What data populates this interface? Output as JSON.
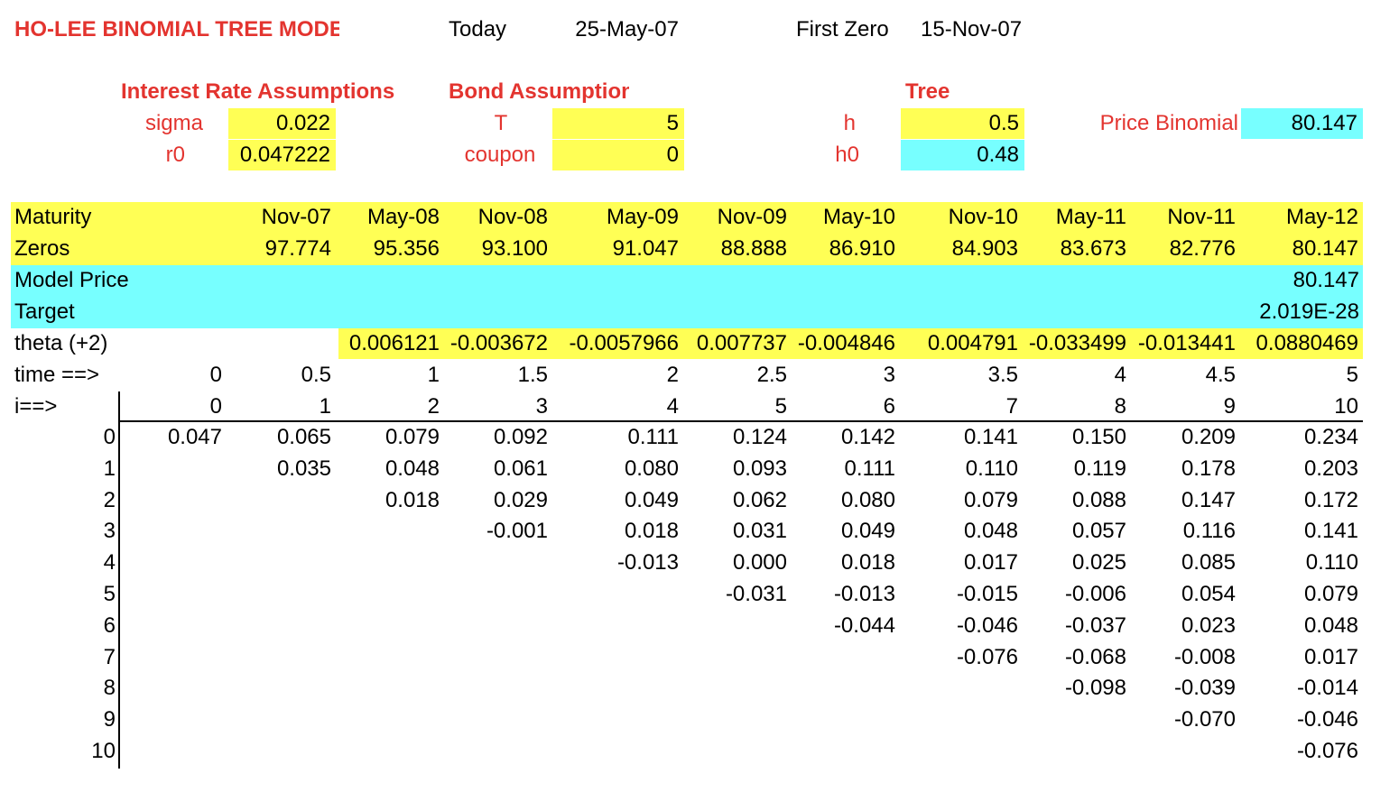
{
  "header": {
    "title": "HO-LEE BINOMIAL TREE MODEL",
    "today_label": "Today",
    "today_value": "25-May-07",
    "first_zero_label": "First Zero",
    "first_zero_value": "15-Nov-07"
  },
  "interest": {
    "heading": "Interest Rate Assumptions",
    "sigma_label": "sigma",
    "sigma_value": "0.022",
    "r0_label": "r0",
    "r0_value": "0.047222"
  },
  "bond": {
    "heading": "Bond Assumption",
    "T_label": "T",
    "T_value": "5",
    "coupon_label": "coupon",
    "coupon_value": "0"
  },
  "tree": {
    "heading": "Tree",
    "h_label": "h",
    "h_value": "0.5",
    "h0_label": "h0",
    "h0_value": "0.48",
    "price_label": "Price Binomial",
    "price_value": "80.147"
  },
  "rows": {
    "maturity_label": "Maturity",
    "maturities": [
      "Nov-07",
      "May-08",
      "Nov-08",
      "May-09",
      "Nov-09",
      "May-10",
      "Nov-10",
      "May-11",
      "Nov-11",
      "May-12"
    ],
    "zeros_label": "Zeros",
    "zeros": [
      "97.774",
      "95.356",
      "93.100",
      "91.047",
      "88.888",
      "86.910",
      "84.903",
      "83.673",
      "82.776",
      "80.147"
    ],
    "model_price_label": "Model Price",
    "model_price_value": "80.147",
    "target_label": "Target",
    "target_value": "2.019E-28",
    "theta_label": "theta (+2)",
    "theta": [
      "0.006121",
      "-0.003672",
      "-0.0057966",
      "0.007737",
      "-0.004846",
      "0.004791",
      "-0.033499",
      "-0.013441",
      "0.0880469"
    ],
    "time_label": "time ==>",
    "times": [
      "0",
      "0.5",
      "1",
      "1.5",
      "2",
      "2.5",
      "3",
      "3.5",
      "4",
      "4.5",
      "5"
    ],
    "i_label": "i==>",
    "i_values": [
      "0",
      "1",
      "2",
      "3",
      "4",
      "5",
      "6",
      "7",
      "8",
      "9",
      "10"
    ]
  },
  "lattice": {
    "row_labels": [
      "0",
      "1",
      "2",
      "3",
      "4",
      "5",
      "6",
      "7",
      "8",
      "9",
      "10"
    ],
    "columns": [
      [
        "0.047"
      ],
      [
        "0.065",
        "0.035"
      ],
      [
        "0.079",
        "0.048",
        "0.018"
      ],
      [
        "0.092",
        "0.061",
        "0.029",
        "-0.001"
      ],
      [
        "0.111",
        "0.080",
        "0.049",
        "0.018",
        "-0.013"
      ],
      [
        "0.124",
        "0.093",
        "0.062",
        "0.031",
        "0.000",
        "-0.031"
      ],
      [
        "0.142",
        "0.111",
        "0.080",
        "0.049",
        "0.018",
        "-0.013",
        "-0.044"
      ],
      [
        "0.141",
        "0.110",
        "0.079",
        "0.048",
        "0.017",
        "-0.015",
        "-0.046",
        "-0.076"
      ],
      [
        "0.150",
        "0.119",
        "0.088",
        "0.057",
        "0.025",
        "-0.006",
        "-0.037",
        "-0.068",
        "-0.098"
      ],
      [
        "0.209",
        "0.178",
        "0.147",
        "0.116",
        "0.085",
        "0.054",
        "0.023",
        "-0.008",
        "-0.039",
        "-0.070"
      ],
      [
        "0.234",
        "0.203",
        "0.172",
        "0.141",
        "0.110",
        "0.079",
        "0.048",
        "0.017",
        "-0.014",
        "-0.046",
        "-0.076"
      ]
    ]
  },
  "colors": {
    "red": "#e3342f",
    "yellow": "#ffff55",
    "cyan": "#77ffff"
  }
}
